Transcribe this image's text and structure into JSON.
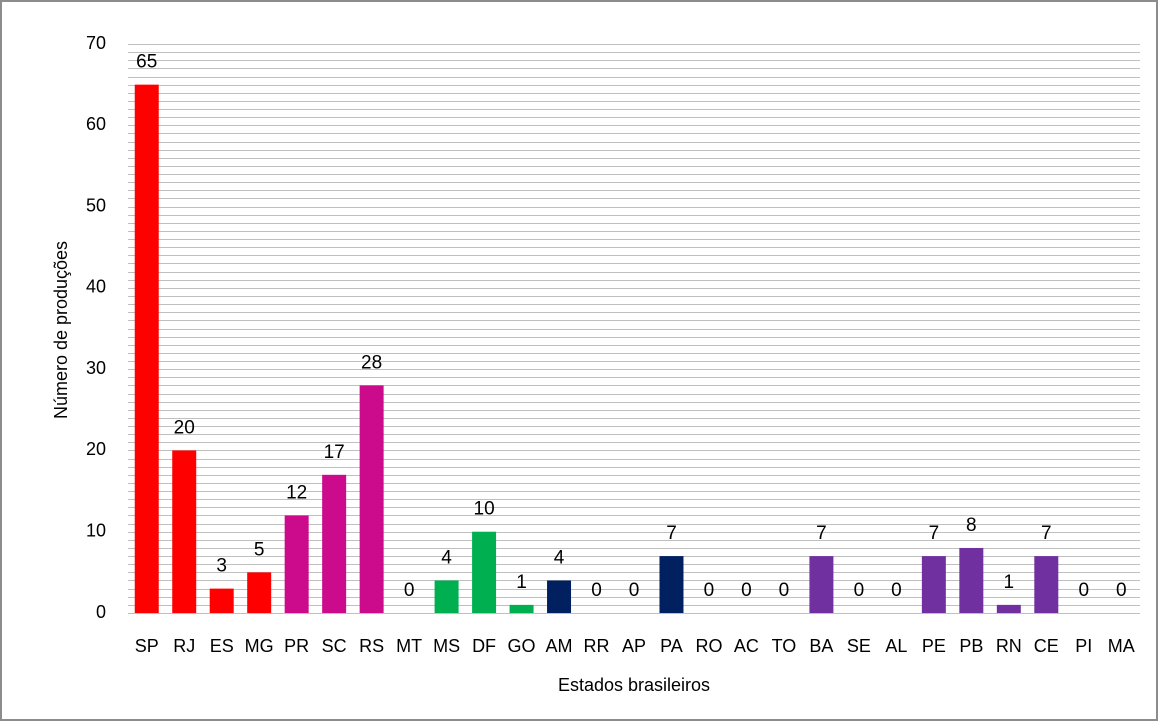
{
  "chart_data": {
    "type": "bar",
    "categories": [
      "SP",
      "RJ",
      "ES",
      "MG",
      "PR",
      "SC",
      "RS",
      "MT",
      "MS",
      "DF",
      "GO",
      "AM",
      "RR",
      "AP",
      "PA",
      "RO",
      "AC",
      "TO",
      "BA",
      "SE",
      "AL",
      "PE",
      "PB",
      "RN",
      "CE",
      "PI",
      "MA"
    ],
    "values": [
      65,
      20,
      3,
      5,
      12,
      17,
      28,
      0,
      4,
      10,
      1,
      4,
      0,
      0,
      7,
      0,
      0,
      0,
      7,
      0,
      0,
      7,
      8,
      1,
      7,
      0,
      0
    ],
    "colors": [
      "#ff0000",
      "#ff0000",
      "#ff0000",
      "#ff0000",
      "#cc0a8c",
      "#cc0a8c",
      "#cc0a8c",
      "#00b050",
      "#00b050",
      "#00b050",
      "#00b050",
      "#002060",
      "#002060",
      "#002060",
      "#002060",
      "#002060",
      "#002060",
      "#002060",
      "#7030a0",
      "#7030a0",
      "#7030a0",
      "#7030a0",
      "#7030a0",
      "#7030a0",
      "#7030a0",
      "#7030a0",
      "#7030a0"
    ],
    "xlabel": "Estados brasileiros",
    "ylabel": "Número de produções",
    "ylim": [
      0,
      70
    ],
    "yticks": [
      0,
      10,
      20,
      30,
      40,
      50,
      60,
      70
    ],
    "grid": true,
    "minor_grid_step": 1
  }
}
